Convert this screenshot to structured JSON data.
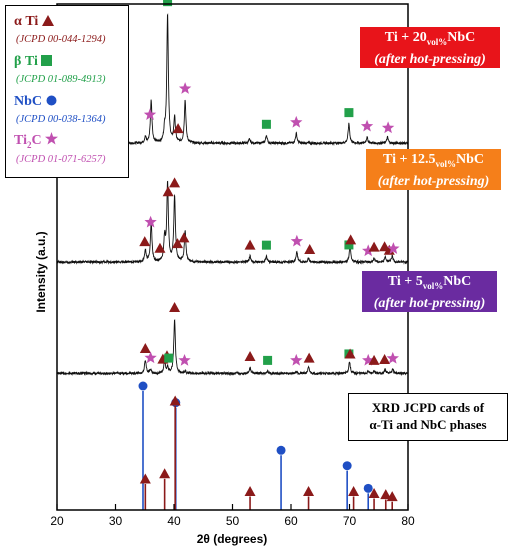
{
  "chart_data": {
    "type": "line",
    "title": "",
    "xlabel": "2θ (degrees)",
    "ylabel": "Intensity (a.u.)",
    "xlim": [
      20,
      80
    ],
    "xticks": [
      "20",
      "30",
      "40",
      "50",
      "60",
      "70",
      "80"
    ],
    "legend": {
      "placement": "top-left",
      "entries": [
        {
          "phase": "α Ti",
          "card": "(JCPD 00-044-1294)",
          "marker": "triangle",
          "color": "#8B1A1A"
        },
        {
          "phase": "β Ti",
          "card": "(JCPD 01-089-4913)",
          "marker": "square",
          "color": "#22A04A"
        },
        {
          "phase": "NbC",
          "card": "(JCPD 00-038-1364)",
          "marker": "circle",
          "color": "#1F4FC4"
        },
        {
          "phase": "Ti2C",
          "card": "(JCPD 01-071-6257)",
          "marker": "star",
          "color": "#C050B0"
        }
      ]
    },
    "series": [
      {
        "name": "Ti + 20vol%NbC (after hot-pressing)",
        "label_line1": "Ti + 20",
        "label_sub": "vol%",
        "label_line1_end": "NbC",
        "label_line2": "(after hot-pressing)",
        "label_color": "#E8141A",
        "baseline_frac": 0.275,
        "peaks": [
          {
            "x": 35.1,
            "h": 0.03
          },
          {
            "x": 36.1,
            "h": 0.22
          },
          {
            "x": 38.4,
            "h": 0.06
          },
          {
            "x": 38.9,
            "h": 0.66
          },
          {
            "x": 40.1,
            "h": 0.13
          },
          {
            "x": 41.9,
            "h": 0.22
          },
          {
            "x": 52.9,
            "h": 0.02
          },
          {
            "x": 55.8,
            "h": 0.04
          },
          {
            "x": 60.9,
            "h": 0.05
          },
          {
            "x": 69.9,
            "h": 0.1
          },
          {
            "x": 73.0,
            "h": 0.03
          },
          {
            "x": 76.5,
            "h": 0.03
          }
        ],
        "markers": [
          {
            "x": 35.9,
            "type": "star"
          },
          {
            "x": 38.9,
            "type": "square"
          },
          {
            "x": 40.7,
            "type": "triangle"
          },
          {
            "x": 41.9,
            "type": "star"
          },
          {
            "x": 55.8,
            "type": "square"
          },
          {
            "x": 60.9,
            "type": "star"
          },
          {
            "x": 69.9,
            "type": "square"
          },
          {
            "x": 73.0,
            "type": "star"
          },
          {
            "x": 76.6,
            "type": "star"
          }
        ]
      },
      {
        "name": "Ti + 12.5vol%NbC (after hot-pressing)",
        "label_line1": "Ti + 12.5",
        "label_sub": "vol%",
        "label_line1_end": "NbC",
        "label_line2": "(after hot-pressing)",
        "label_color": "#F57F1A",
        "baseline_frac": 0.51,
        "peaks": [
          {
            "x": 35.1,
            "h": 0.06
          },
          {
            "x": 36.1,
            "h": 0.2
          },
          {
            "x": 38.4,
            "h": 0.12
          },
          {
            "x": 38.9,
            "h": 0.4
          },
          {
            "x": 40.1,
            "h": 0.34
          },
          {
            "x": 41.9,
            "h": 0.16
          },
          {
            "x": 53.0,
            "h": 0.03
          },
          {
            "x": 55.8,
            "h": 0.03
          },
          {
            "x": 61.0,
            "h": 0.05
          },
          {
            "x": 63.0,
            "h": 0.02
          },
          {
            "x": 70.1,
            "h": 0.08
          },
          {
            "x": 74.2,
            "h": 0.02
          },
          {
            "x": 76.1,
            "h": 0.03
          },
          {
            "x": 77.3,
            "h": 0.03
          }
        ],
        "markers": [
          {
            "x": 35.0,
            "type": "triangle"
          },
          {
            "x": 36.0,
            "type": "star"
          },
          {
            "x": 37.6,
            "type": "triangle"
          },
          {
            "x": 39.0,
            "type": "triangle"
          },
          {
            "x": 40.1,
            "type": "triangle"
          },
          {
            "x": 40.6,
            "type": "triangle"
          },
          {
            "x": 41.7,
            "type": "triangle"
          },
          {
            "x": 53.0,
            "type": "triangle"
          },
          {
            "x": 55.8,
            "type": "square"
          },
          {
            "x": 61.0,
            "type": "star"
          },
          {
            "x": 63.2,
            "type": "triangle"
          },
          {
            "x": 69.9,
            "type": "square"
          },
          {
            "x": 70.2,
            "type": "triangle"
          },
          {
            "x": 73.2,
            "type": "star"
          },
          {
            "x": 74.2,
            "type": "triangle"
          },
          {
            "x": 76.0,
            "type": "triangle"
          },
          {
            "x": 76.8,
            "type": "triangle"
          },
          {
            "x": 77.5,
            "type": "star"
          }
        ]
      },
      {
        "name": "Ti + 5vol%NbC (after hot-pressing)",
        "label_line1": "Ti + 5",
        "label_sub": "vol%",
        "label_line1_end": "NbC",
        "label_line2": "(after hot-pressing)",
        "label_color": "#6A2BA0",
        "baseline_frac": 0.73,
        "peaks": [
          {
            "x": 35.1,
            "h": 0.07
          },
          {
            "x": 36.0,
            "h": 0.02
          },
          {
            "x": 38.4,
            "h": 0.06
          },
          {
            "x": 38.9,
            "h": 0.03
          },
          {
            "x": 40.1,
            "h": 0.28
          },
          {
            "x": 41.9,
            "h": 0.01
          },
          {
            "x": 53.0,
            "h": 0.03
          },
          {
            "x": 56.0,
            "h": 0.01
          },
          {
            "x": 60.9,
            "h": 0.01
          },
          {
            "x": 63.0,
            "h": 0.03
          },
          {
            "x": 70.0,
            "h": 0.06
          },
          {
            "x": 73.2,
            "h": 0.01
          },
          {
            "x": 74.2,
            "h": 0.01
          },
          {
            "x": 76.1,
            "h": 0.02
          },
          {
            "x": 77.4,
            "h": 0.02
          }
        ],
        "markers": [
          {
            "x": 35.1,
            "type": "triangle"
          },
          {
            "x": 36.0,
            "type": "star"
          },
          {
            "x": 38.1,
            "type": "triangle"
          },
          {
            "x": 38.8,
            "type": "triangle"
          },
          {
            "x": 39.1,
            "type": "square"
          },
          {
            "x": 40.1,
            "type": "triangle"
          },
          {
            "x": 41.8,
            "type": "star"
          },
          {
            "x": 53.0,
            "type": "triangle"
          },
          {
            "x": 56.0,
            "type": "square"
          },
          {
            "x": 60.9,
            "type": "star"
          },
          {
            "x": 63.1,
            "type": "triangle"
          },
          {
            "x": 69.9,
            "type": "square"
          },
          {
            "x": 70.1,
            "type": "triangle"
          },
          {
            "x": 73.2,
            "type": "star"
          },
          {
            "x": 74.2,
            "type": "triangle"
          },
          {
            "x": 76.0,
            "type": "triangle"
          },
          {
            "x": 77.4,
            "type": "star"
          }
        ]
      }
    ],
    "reference_cards": {
      "label_line1": "XRD JCPD cards of",
      "label_line2": "α-Ti and NbC phases",
      "alpha_ti": {
        "color": "#8B1A1A",
        "lines": [
          {
            "x": 35.1,
            "h": 0.25
          },
          {
            "x": 38.4,
            "h": 0.3
          },
          {
            "x": 40.2,
            "h": 1.0
          },
          {
            "x": 53.0,
            "h": 0.13
          },
          {
            "x": 63.0,
            "h": 0.13
          },
          {
            "x": 70.7,
            "h": 0.13
          },
          {
            "x": 74.2,
            "h": 0.11
          },
          {
            "x": 76.2,
            "h": 0.1
          },
          {
            "x": 77.3,
            "h": 0.08
          }
        ]
      },
      "nbc": {
        "color": "#1F4FC4",
        "lines": [
          {
            "x": 34.7,
            "h": 1.0
          },
          {
            "x": 40.3,
            "h": 0.86
          },
          {
            "x": 58.3,
            "h": 0.46
          },
          {
            "x": 69.6,
            "h": 0.33
          },
          {
            "x": 73.2,
            "h": 0.14
          }
        ]
      }
    }
  }
}
